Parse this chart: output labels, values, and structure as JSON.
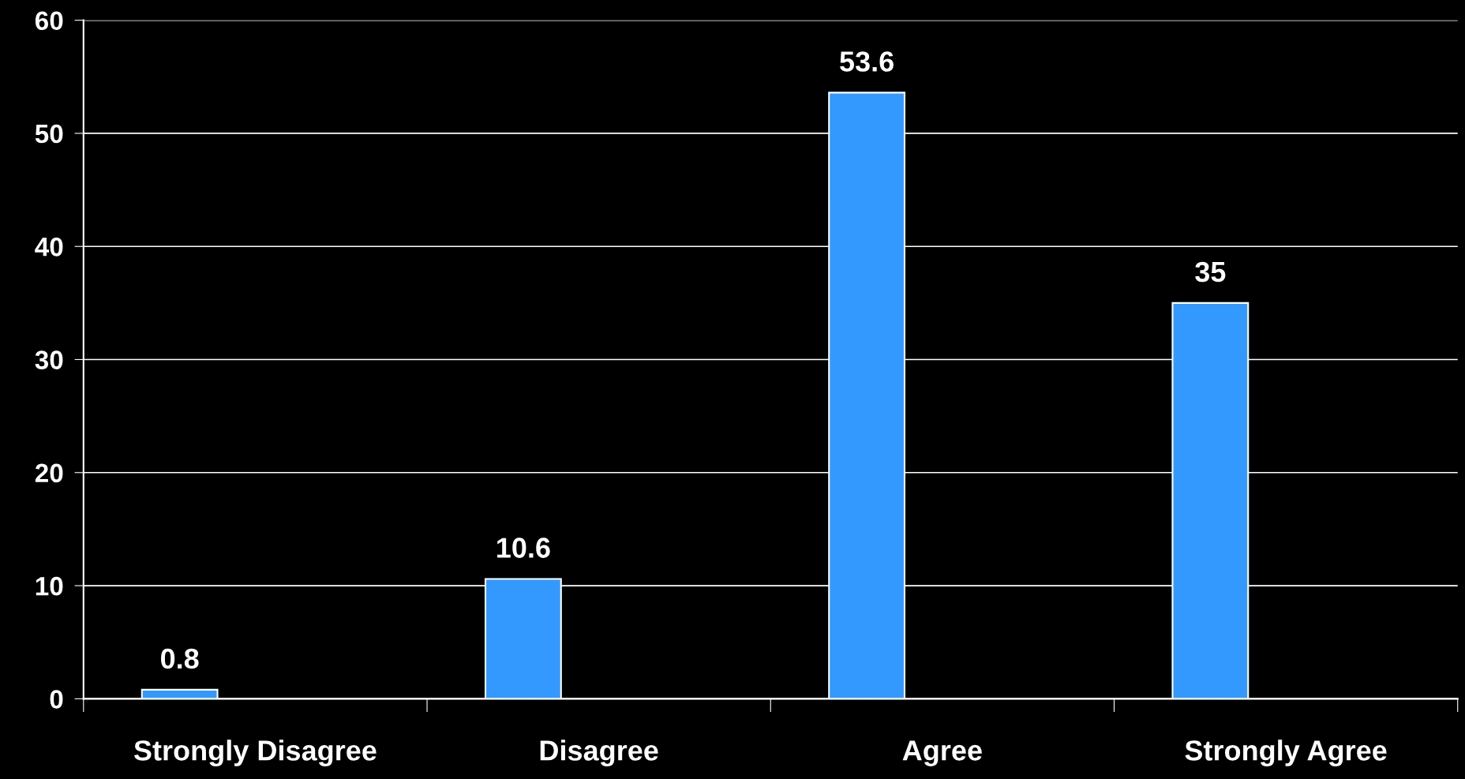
{
  "chart_data": {
    "type": "bar",
    "categories": [
      "Strongly Disagree",
      "Disagree",
      "Agree",
      "Strongly Agree"
    ],
    "values": [
      0.8,
      10.6,
      53.6,
      35
    ],
    "color": "#3399ff",
    "ylim": [
      0,
      60
    ],
    "yticks": [
      0,
      10,
      20,
      30,
      40,
      50,
      60
    ],
    "grid": "y",
    "data_labels": true
  }
}
